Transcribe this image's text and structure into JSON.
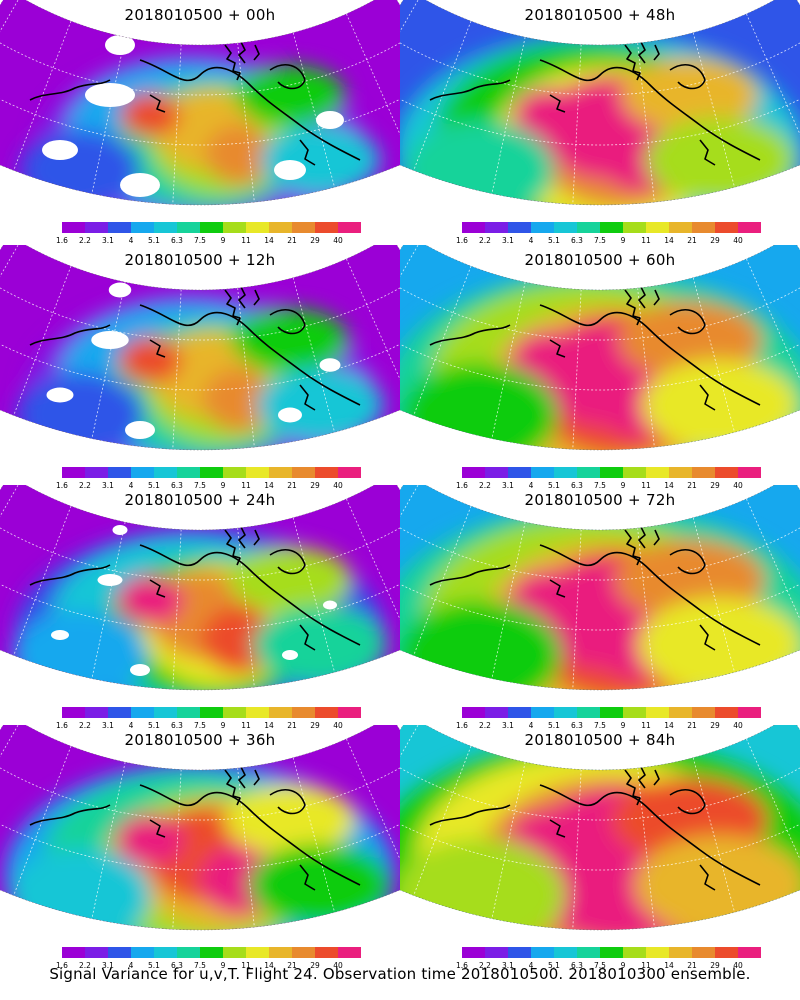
{
  "caption": "Signal Variance for u,v,T. Flight 24. Observation time 2018010500. 2018010300 ensemble.",
  "colorbar": {
    "labels": [
      "1.6",
      "2.2",
      "3.1",
      "4",
      "5.1",
      "6.3",
      "7.5",
      "9",
      "11",
      "14",
      "21",
      "29",
      "40"
    ],
    "colors": [
      "#9b00d6",
      "#7b1ee6",
      "#2f55e8",
      "#16a8ee",
      "#17c6d6",
      "#16d39a",
      "#0fcc0f",
      "#a6dd1a",
      "#e8e827",
      "#e8b52a",
      "#e88a2e",
      "#ec4b2c",
      "#ea1f7e"
    ]
  },
  "panels": [
    {
      "id": "p00",
      "title": "2018010500 + 00h",
      "variance_stage": 0
    },
    {
      "id": "p48",
      "title": "2018010500 + 48h",
      "variance_stage": 4
    },
    {
      "id": "p12",
      "title": "2018010500 + 12h",
      "variance_stage": 1
    },
    {
      "id": "p60",
      "title": "2018010500 + 60h",
      "variance_stage": 5
    },
    {
      "id": "p24",
      "title": "2018010500 + 24h",
      "variance_stage": 2
    },
    {
      "id": "p72",
      "title": "2018010500 + 72h",
      "variance_stage": 6
    },
    {
      "id": "p36",
      "title": "2018010500 + 36h",
      "variance_stage": 3
    },
    {
      "id": "p84",
      "title": "2018010500 + 84h",
      "variance_stage": 7
    }
  ]
}
